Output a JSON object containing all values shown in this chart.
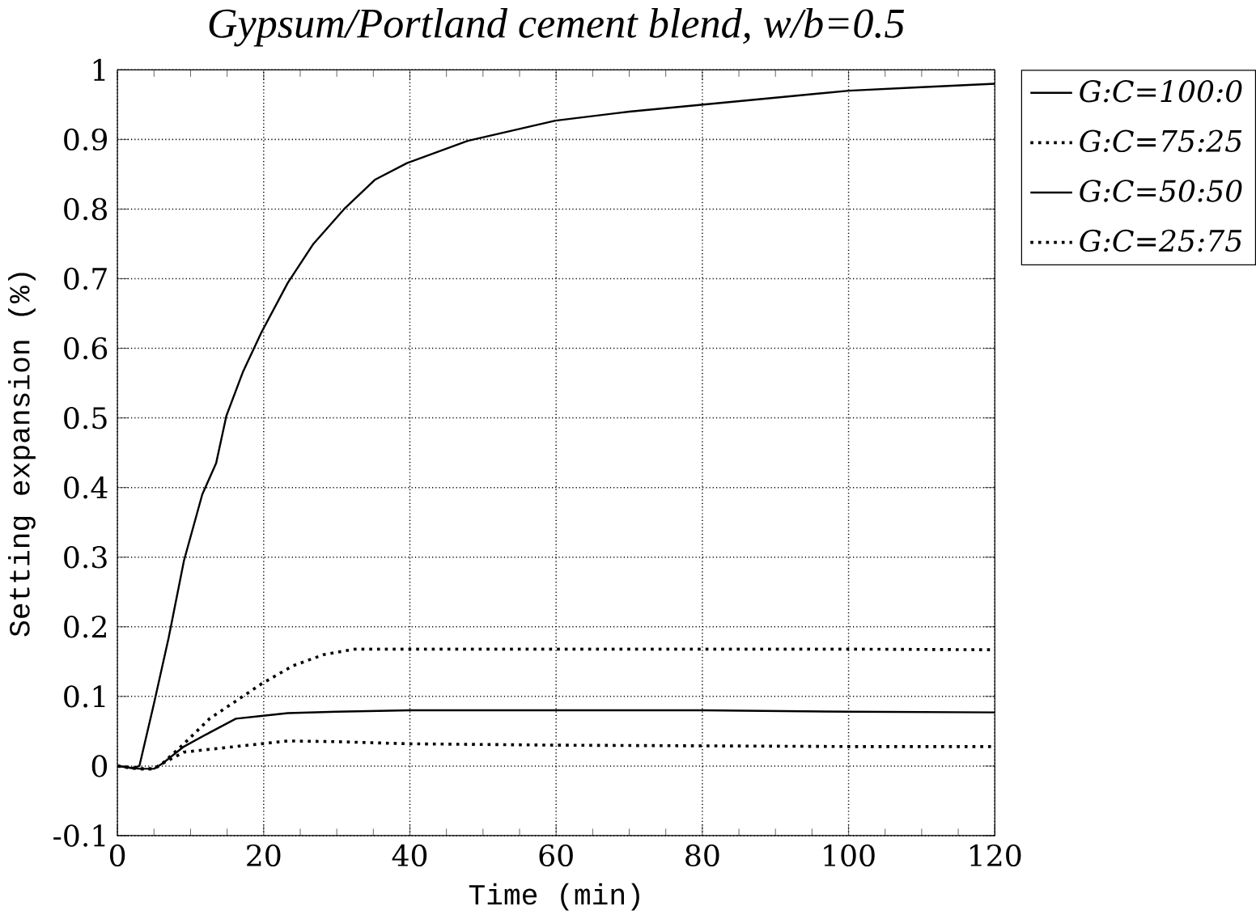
{
  "chart_data": {
    "type": "line",
    "title": "Gypsum/Portland cement blend,  w/b=0.5",
    "xlabel": "Time (min)",
    "ylabel": "Setting expansion (%)",
    "xlim": [
      0,
      120
    ],
    "ylim": [
      -0.1,
      1
    ],
    "xticks": [
      0,
      20,
      40,
      60,
      80,
      100,
      120
    ],
    "yticks": [
      -0.1,
      0,
      0.1,
      0.2,
      0.3,
      0.4,
      0.5,
      0.6,
      0.7,
      0.8,
      0.9,
      1
    ],
    "grid": true,
    "legend": "right",
    "series": [
      {
        "name": "G:C=100:0",
        "color": "#000000",
        "line_style": "solid",
        "x": [
          0,
          2,
          3,
          5,
          7,
          9.1,
          11.6,
          13.5,
          14.9,
          17.2,
          19.7,
          23.3,
          26.8,
          31,
          35.2,
          39.6,
          47.9,
          59.9,
          70,
          80,
          90,
          100,
          110,
          120
        ],
        "values": [
          0,
          -0.003,
          0,
          0.09,
          0.184,
          0.295,
          0.39,
          0.435,
          0.503,
          0.567,
          0.623,
          0.694,
          0.75,
          0.8,
          0.842,
          0.866,
          0.898,
          0.927,
          0.94,
          0.95,
          0.96,
          0.97,
          0.975,
          0.98
        ]
      },
      {
        "name": "G:C=75:25",
        "color": "#000000",
        "line_style": "dotted",
        "x": [
          0,
          3,
          5,
          6.2,
          9.1,
          12.6,
          19.7,
          24,
          28.2,
          32.5,
          40,
          60,
          80,
          100,
          120
        ],
        "values": [
          0,
          -0.004,
          -0.004,
          0.004,
          0.032,
          0.068,
          0.118,
          0.144,
          0.16,
          0.168,
          0.168,
          0.168,
          0.168,
          0.168,
          0.167
        ]
      },
      {
        "name": "G:C=50:50",
        "color": "#000000",
        "line_style": "solid",
        "x": [
          0,
          3,
          5,
          6.2,
          9.1,
          12.6,
          16.2,
          19.7,
          23.3,
          30,
          40,
          60,
          80,
          100,
          120
        ],
        "values": [
          0,
          -0.004,
          -0.004,
          0.004,
          0.028,
          0.048,
          0.068,
          0.072,
          0.076,
          0.078,
          0.08,
          0.08,
          0.08,
          0.078,
          0.077
        ]
      },
      {
        "name": "G:C=25:75",
        "color": "#000000",
        "line_style": "dotted",
        "x": [
          0,
          3,
          5,
          6.2,
          9.1,
          12.6,
          19.7,
          23.3,
          30,
          39.6,
          60,
          80,
          100,
          120
        ],
        "values": [
          0,
          -0.004,
          -0.004,
          0.004,
          0.02,
          0.024,
          0.032,
          0.036,
          0.035,
          0.032,
          0.03,
          0.029,
          0.028,
          0.028
        ]
      }
    ]
  }
}
